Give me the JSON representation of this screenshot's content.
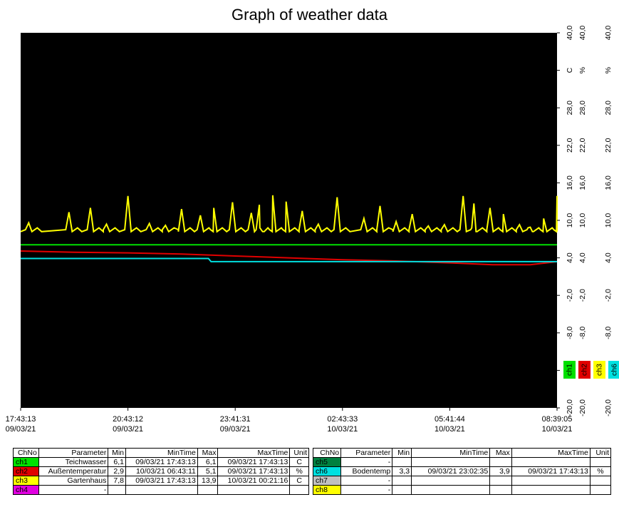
{
  "title": "Graph of weather data",
  "colors": {
    "ch1": "#00e000",
    "ch2": "#e00000",
    "ch3": "#ffff00",
    "ch4": "#e000e0",
    "ch5": "#008040",
    "ch6": "#00e0e0",
    "ch7": "#c0c0c0",
    "ch8": "#ffff00",
    "plot_bg": "#000000"
  },
  "chart_data": {
    "type": "line",
    "title": "Graph of weather data",
    "ylim": [
      -20,
      40
    ],
    "grid": false,
    "x_ticks": [
      {
        "time": "17:43:13",
        "date": "09/03/21"
      },
      {
        "time": "20:43:12",
        "date": "09/03/21"
      },
      {
        "time": "23:41:31",
        "date": "09/03/21"
      },
      {
        "time": "02:43:33",
        "date": "10/03/21"
      },
      {
        "time": "05:41:44",
        "date": "10/03/21"
      },
      {
        "time": "08:39:05",
        "date": "10/03/21"
      }
    ],
    "y_axes": [
      {
        "ticks": [
          "40,0",
          "C",
          "28,0",
          "22,0",
          "16,0",
          "10,0",
          "4,0",
          "-2,0",
          "-8,0",
          "",
          "-20,0"
        ]
      },
      {
        "ticks": [
          "40,0",
          "%",
          "28,0",
          "22,0",
          "16,0",
          "10,0",
          "4,0",
          "-2,0",
          "-8,0",
          "",
          "-20,0"
        ]
      },
      {
        "ticks": [
          "40,0",
          "%",
          "28,0",
          "22,0",
          "16,0",
          "10,0",
          "4,0",
          "-2,0",
          "-8,0",
          "",
          "-20,0"
        ]
      }
    ],
    "legend": [
      "ch1",
      "ch2",
      "ch3",
      "ch6"
    ],
    "legend_position": "right",
    "series": [
      {
        "name": "ch1",
        "color": "#00e000",
        "points": [
          [
            0,
            6.1
          ],
          [
            1,
            6.1
          ]
        ]
      },
      {
        "name": "ch2",
        "color": "#e00000",
        "points": [
          [
            0,
            5.1
          ],
          [
            0.1,
            4.9
          ],
          [
            0.2,
            4.8
          ],
          [
            0.3,
            4.6
          ],
          [
            0.4,
            4.3
          ],
          [
            0.5,
            4.0
          ],
          [
            0.6,
            3.7
          ],
          [
            0.7,
            3.5
          ],
          [
            0.8,
            3.2
          ],
          [
            0.88,
            2.9
          ],
          [
            0.95,
            2.9
          ],
          [
            1,
            3.4
          ]
        ]
      },
      {
        "name": "ch3",
        "color": "#ffff00",
        "base": 8.2,
        "peaks": [
          [
            0.015,
            9.6
          ],
          [
            0.09,
            11.3
          ],
          [
            0.13,
            12.0
          ],
          [
            0.16,
            9.4
          ],
          [
            0.2,
            13.9
          ],
          [
            0.24,
            9.5
          ],
          [
            0.27,
            9.2
          ],
          [
            0.3,
            11.8
          ],
          [
            0.335,
            10.8
          ],
          [
            0.36,
            12.0
          ],
          [
            0.395,
            12.9
          ],
          [
            0.43,
            11.2
          ],
          [
            0.445,
            12.5
          ],
          [
            0.47,
            14.0
          ],
          [
            0.495,
            13.0
          ],
          [
            0.525,
            11.5
          ],
          [
            0.555,
            9.4
          ],
          [
            0.59,
            13.7
          ],
          [
            0.64,
            10.3
          ],
          [
            0.67,
            12.3
          ],
          [
            0.7,
            9.8
          ],
          [
            0.73,
            11.0
          ],
          [
            0.76,
            9.1
          ],
          [
            0.79,
            9.3
          ],
          [
            0.825,
            13.9
          ],
          [
            0.845,
            12.7
          ],
          [
            0.875,
            12.0
          ],
          [
            0.9,
            11.0
          ],
          [
            0.93,
            9.3
          ],
          [
            0.95,
            8.9
          ],
          [
            0.975,
            10.3
          ],
          [
            1.0,
            13.9
          ]
        ]
      },
      {
        "name": "ch6",
        "color": "#00e0e0",
        "points": [
          [
            0,
            3.9
          ],
          [
            0.35,
            3.9
          ],
          [
            0.355,
            3.4
          ],
          [
            1,
            3.4
          ]
        ]
      }
    ]
  },
  "table_left": {
    "headers": [
      "ChNo",
      "Parameter",
      "Min",
      "MinTime",
      "Max",
      "MaxTime",
      "Unit"
    ],
    "rows": [
      {
        "ch": "ch1",
        "param": "Teichwasser",
        "min": "6,1",
        "mintime": "09/03/21 17:43:13",
        "max": "6,1",
        "maxtime": "09/03/21 17:43:13",
        "unit": "C"
      },
      {
        "ch": "ch2",
        "param": "Außentemperatur",
        "min": "2,9",
        "mintime": "10/03/21 06:43:11",
        "max": "5,1",
        "maxtime": "09/03/21 17:43:13",
        "unit": "%"
      },
      {
        "ch": "ch3",
        "param": "Gartenhaus",
        "min": "7,8",
        "mintime": "09/03/21 17:43:13",
        "max": "13,9",
        "maxtime": "10/03/21 00:21:16",
        "unit": "C"
      },
      {
        "ch": "ch4",
        "param": "-",
        "min": "",
        "mintime": "",
        "max": "",
        "maxtime": "",
        "unit": ""
      }
    ]
  },
  "table_right": {
    "headers": [
      "ChNo",
      "Parameter",
      "Min",
      "MinTime",
      "Max",
      "MaxTime",
      "Unit"
    ],
    "rows": [
      {
        "ch": "ch5",
        "param": "-",
        "min": "",
        "mintime": "",
        "max": "",
        "maxtime": "",
        "unit": ""
      },
      {
        "ch": "ch6",
        "param": "Bodentemp",
        "min": "3,3",
        "mintime": "09/03/21 23:02:35",
        "max": "3,9",
        "maxtime": "09/03/21 17:43:13",
        "unit": "%"
      },
      {
        "ch": "ch7",
        "param": "-",
        "min": "",
        "mintime": "",
        "max": "",
        "maxtime": "",
        "unit": ""
      },
      {
        "ch": "ch8",
        "param": "-",
        "min": "",
        "mintime": "",
        "max": "",
        "maxtime": "",
        "unit": ""
      }
    ]
  }
}
